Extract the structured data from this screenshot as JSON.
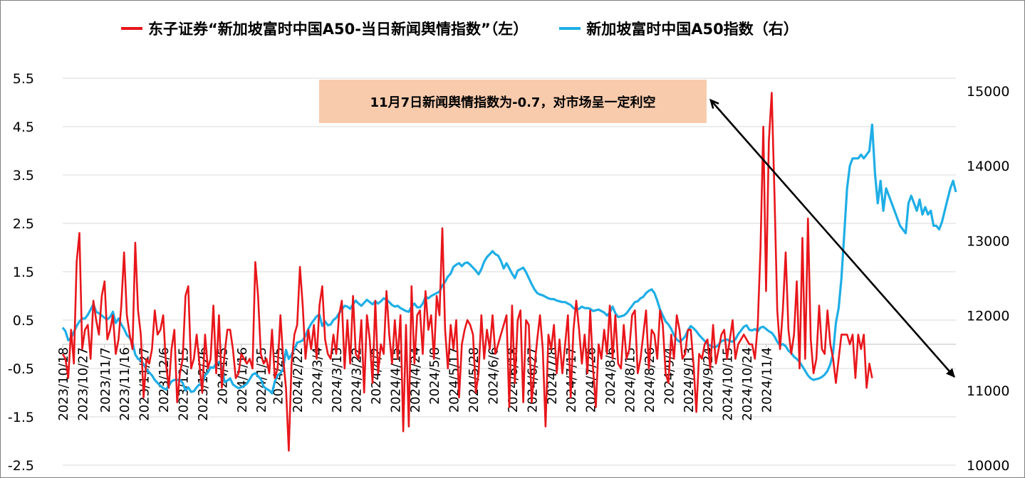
{
  "legend": {
    "left_series_label": "东子证券“新加坡富时中国A50-当日新闻舆情指数”（左）",
    "right_series_label": "新加坡富时中国A50指数（右）"
  },
  "annotation": {
    "text": "11月7日新闻舆情指数为-0.7，对市场呈一定利空"
  },
  "colors": {
    "left_series": "#e8161b",
    "right_series": "#1eaee6",
    "annotation_bg": "#f8cbad",
    "arrow": "#000000"
  },
  "chart_data": {
    "type": "line",
    "left_axis": {
      "ylim": [
        -2.5,
        5.5
      ],
      "ticks": [
        "-2.5",
        "-1.5",
        "-0.5",
        "0.5",
        "1.5",
        "2.5",
        "3.5",
        "4.5",
        "5.5"
      ]
    },
    "right_axis": {
      "ylim": [
        10000,
        15000
      ],
      "ticks": [
        "10000",
        "11000",
        "12000",
        "13000",
        "14000",
        "15000"
      ]
    },
    "x_tick_labels": [
      "2023/10/18",
      "2023/10/27",
      "2023/11/7",
      "2023/11/16",
      "2023/11/27",
      "2023/12/6",
      "2023/12/15",
      "2023/12/26",
      "2024/1/5",
      "2024/1/16",
      "2024/1/25",
      "2024/2/5",
      "2024/2/22",
      "2024/3/4",
      "2024/3/13",
      "2024/3/22",
      "2024/4/2",
      "2024/4/15",
      "2024/4/24",
      "2024/5/8",
      "2024/5/17",
      "2024/5/28",
      "2024/6/6",
      "2024/6/18",
      "2024/6/27",
      "2024/7/8",
      "2024/7/17",
      "2024/7/26",
      "2024/8/6",
      "2024/8/15",
      "2024/8/26",
      "2024/9/4",
      "2024/9/13",
      "2024/9/24",
      "2024/10/15",
      "2024/10/24",
      "2024/11/4"
    ],
    "x_tick_positions": [
      0,
      7,
      15,
      22,
      29,
      36,
      43,
      50,
      57,
      64,
      71,
      77,
      84,
      91,
      98,
      105,
      112,
      119,
      126,
      133,
      140,
      147,
      154,
      161,
      168,
      175,
      182,
      189,
      196,
      203,
      210,
      217,
      224,
      231,
      238,
      245,
      252
    ],
    "series": [
      {
        "name": "东子证券“新加坡富时中国A50-当日新闻舆情指数”（左）",
        "axis": "left",
        "values": [
          -0.2,
          -0.3,
          -0.7,
          0.3,
          -0.4,
          1.7,
          2.3,
          -0.1,
          0.3,
          0.4,
          -0.3,
          0.9,
          0.5,
          0.2,
          1.0,
          1.3,
          0.1,
          0.3,
          0.6,
          -0.2,
          0.1,
          0.8,
          1.9,
          0.6,
          0.2,
          -0.1,
          2.1,
          0.7,
          0.2,
          -1.1,
          -0.3,
          -0.4,
          -0.1,
          0.7,
          0.2,
          0.3,
          0.6,
          -0.4,
          -0.9,
          -0.1,
          0.3,
          -1.2,
          -0.6,
          -0.3,
          1.0,
          1.2,
          -0.5,
          -0.3,
          0.2,
          -0.4,
          -1.0,
          0.2,
          -0.5,
          -0.3,
          0.8,
          -0.6,
          0.6,
          -0.9,
          -0.2,
          0.3,
          0.3,
          -0.1,
          -0.7,
          -0.6,
          -0.2,
          -0.3,
          -0.4,
          -0.3,
          -0.5,
          1.7,
          1.0,
          -0.2,
          -0.4,
          -0.3,
          -0.6,
          0.3,
          -0.7,
          -0.5,
          0.6,
          -0.3,
          -0.9,
          -2.2,
          -0.4,
          0.2,
          0.4,
          1.6,
          0.8,
          -0.3,
          0.3,
          -0.1,
          0.4,
          -0.3,
          0.8,
          1.2,
          0.1,
          -0.2,
          -0.3,
          0.2,
          -0.2,
          0.6,
          0.9,
          -0.5,
          0.5,
          -0.4,
          1.0,
          -0.2,
          -0.3,
          0.5,
          -1.0,
          0.6,
          0.1,
          -0.8,
          0.9,
          -0.6,
          0.0,
          -0.2,
          1.1,
          0.2,
          -0.4,
          0.5,
          -0.3,
          0.6,
          -1.8,
          0.4,
          -1.7,
          1.2,
          -0.4,
          0.6,
          0.7,
          -0.2,
          1.1,
          0.3,
          0.6,
          -0.3,
          1.0,
          0.6,
          2.4,
          0.3,
          -0.5,
          0.4,
          -0.1,
          0.5,
          -1.1,
          0.0,
          0.3,
          0.5,
          0.4,
          0.2,
          -1.0,
          -0.6,
          0.6,
          -0.3,
          0.3,
          -0.1,
          0.6,
          -0.2,
          0.0,
          0.2,
          0.4,
          0.6,
          -1.3,
          0.8,
          -0.8,
          0.5,
          0.7,
          -1.2,
          0.5,
          0.4,
          -1.2,
          -0.5,
          0.1,
          0.6,
          -0.1,
          -1.7,
          0.2,
          -0.1,
          0.4,
          -0.6,
          0.1,
          -0.6,
          0.0,
          0.6,
          -1.1,
          0.3,
          0.9,
          0.3,
          -0.4,
          0.2,
          -0.6,
          0.7,
          -0.5,
          -1.3,
          0.0,
          -0.3,
          0.3,
          -0.2,
          0.8,
          -0.3,
          0.6,
          -0.4,
          -0.5,
          0.4,
          -0.3,
          -0.1,
          0.6,
          0.7,
          -0.6,
          -0.3,
          0.2,
          0.7,
          -0.5,
          0.3,
          0.2,
          -0.3,
          0.7,
          0.4,
          -0.6,
          -0.8,
          0.2,
          -0.3,
          0.6,
          0.3,
          -0.3,
          -0.2,
          0.3,
          0.3,
          -0.4,
          -1.4,
          -0.2,
          -0.3,
          0.0,
          0.1,
          -0.5,
          0.4,
          -0.4,
          -0.1,
          0.2,
          0.3,
          -0.3,
          0.1,
          0.5,
          -0.3,
          0.0,
          0.1,
          0.2,
          0.1,
          0.0,
          0.0,
          -0.3,
          0.4,
          2.0,
          4.5,
          1.1,
          4.2,
          5.2,
          3.1,
          0.7,
          -0.1,
          0.7,
          1.9,
          0.3,
          -0.2,
          0.2,
          1.3,
          -0.5,
          2.2,
          -0.3,
          2.6,
          0.1,
          -0.6,
          -0.3,
          0.8,
          -0.1,
          -0.2,
          0.7,
          0.0,
          -0.3,
          -0.8,
          -0.3,
          0.2,
          0.2,
          0.2,
          0.0,
          0.2,
          -0.7,
          0.2,
          -0.1,
          0.2,
          -0.9,
          -0.4,
          -0.7
        ]
      },
      {
        "name": "新加坡富时中国A50指数（右）",
        "axis": "right",
        "values": [
          11840,
          11790,
          11670,
          11700,
          11780,
          11860,
          11920,
          11960,
          11960,
          12010,
          12080,
          12150,
          12050,
          12030,
          12000,
          11970,
          11950,
          11980,
          12050,
          11900,
          11960,
          11880,
          11820,
          11740,
          11700,
          11640,
          11480,
          11420,
          11400,
          11350,
          11280,
          11240,
          11200,
          11140,
          11100,
          11060,
          11030,
          11010,
          11060,
          11120,
          11140,
          11140,
          11140,
          11100,
          11000,
          11040,
          10980,
          10990,
          11040,
          11080,
          11090,
          11200,
          11240,
          11310,
          11300,
          11360,
          11380,
          11320,
          11110,
          11130,
          11160,
          11080,
          11050,
          11030,
          11040,
          11060,
          11090,
          11150,
          11210,
          11230,
          11190,
          11150,
          11050,
          11020,
          11000,
          10960,
          11120,
          11200,
          11230,
          11290,
          11540,
          11420,
          11480,
          11550,
          11640,
          11650,
          11670,
          11730,
          11820,
          11890,
          11940,
          11990,
          12010,
          11860,
          11920,
          11870,
          11880,
          11940,
          11970,
          12030,
          12080,
          12130,
          12120,
          12090,
          12150,
          12200,
          12160,
          12130,
          12170,
          12210,
          12180,
          12150,
          12190,
          12160,
          12190,
          12230,
          12210,
          12180,
          12140,
          12120,
          12130,
          12100,
          12080,
          12060,
          12050,
          12120,
          12160,
          12110,
          12110,
          12160,
          12250,
          12230,
          12260,
          12280,
          12300,
          12320,
          12400,
          12450,
          12520,
          12560,
          12650,
          12680,
          12700,
          12660,
          12700,
          12710,
          12680,
          12640,
          12600,
          12550,
          12620,
          12720,
          12780,
          12820,
          12860,
          12820,
          12800,
          12730,
          12630,
          12700,
          12630,
          12560,
          12500,
          12600,
          12620,
          12640,
          12580,
          12500,
          12420,
          12350,
          12300,
          12280,
          12270,
          12250,
          12230,
          12220,
          12220,
          12200,
          12190,
          12180,
          12180,
          12160,
          12140,
          12100,
          12080,
          12090,
          12120,
          12100,
          12100,
          12090,
          12060,
          12070,
          12080,
          12060,
          12040,
          12000,
          12040,
          12120,
          12030,
          11980,
          11990,
          12000,
          12030,
          12080,
          12130,
          12180,
          12190,
          12230,
          12250,
          12300,
          12330,
          12350,
          12300,
          12200,
          12080,
          12000,
          11920,
          11880,
          11820,
          11740,
          11680,
          11650,
          11680,
          11720,
          11800,
          11860,
          11830,
          11790,
          11740,
          11700,
          11660,
          11620,
          11600,
          11580,
          11580,
          11610,
          11660,
          11670,
          11680,
          11660,
          11650,
          11680,
          11750,
          11800,
          11850,
          11870,
          11810,
          11800,
          11820,
          11790,
          11840,
          11850,
          11820,
          11790,
          11770,
          11720,
          11650,
          11600,
          11620,
          11590,
          11530,
          11500,
          11450,
          11420,
          11380,
          11320,
          11260,
          11200,
          11160,
          11140,
          11150,
          11160,
          11180,
          11210,
          11260,
          11350,
          11500,
          11900,
          12100,
          12500,
          13100,
          13700,
          14000,
          14100,
          14100,
          14100,
          14150,
          14100,
          14150,
          14200,
          14550,
          13900,
          13500,
          13800,
          13400,
          13700,
          13600,
          13500,
          13400,
          13300,
          13200,
          13150,
          13100,
          13500,
          13600,
          13500,
          13400,
          13550,
          13350,
          13450,
          13350,
          13400,
          13200,
          13200,
          13150,
          13250,
          13400,
          13550,
          13700,
          13800,
          13650
        ]
      }
    ],
    "grid": "horizontal",
    "legend_position": "top"
  }
}
